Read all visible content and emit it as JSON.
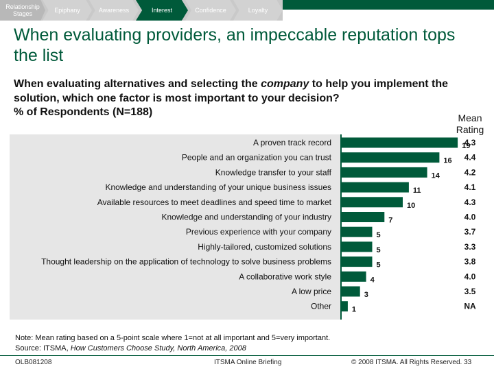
{
  "nav": {
    "label": "Relationship Stages",
    "stages": [
      "Epiphany",
      "Awareness",
      "Interest",
      "Confidence",
      "Loyalty"
    ],
    "active": "Interest"
  },
  "title": "When evaluating providers, an impeccable reputation tops the list",
  "subtitle": {
    "part1": "When evaluating alternatives and selecting the ",
    "emph": "company",
    "part2": " to help you implement the solution, which one factor is most important to your decision?"
  },
  "respondents": "% of Respondents (N=188)",
  "mean_rating_header": "Mean Rating",
  "colors": {
    "brand": "#005a3a",
    "bar": "#005a3a",
    "plot_bg": "#e6e6e6"
  },
  "chart_data": {
    "type": "bar",
    "orientation": "horizontal",
    "categories": [
      "A proven track record",
      "People and an organization you can trust",
      "Knowledge transfer to your staff",
      "Knowledge and understanding of your unique business issues",
      "Available resources to meet deadlines and speed time to market",
      "Knowledge and understanding of your industry",
      "Previous experience with your company",
      "Highly-tailored, customized solutions",
      "Thought leadership on the application of technology to solve business problems",
      "A collaborative work style",
      "A low price",
      "Other"
    ],
    "values": [
      19,
      16,
      14,
      11,
      10,
      7,
      5,
      5,
      5,
      4,
      3,
      1
    ],
    "mean_ratings": [
      "4.3",
      "4.4",
      "4.2",
      "4.1",
      "4.3",
      "4.0",
      "3.7",
      "3.3",
      "3.8",
      "4.0",
      "3.5",
      "NA"
    ],
    "xlim": [
      0,
      20
    ]
  },
  "note": {
    "line1": "Note: Mean rating based on a 5-point scale where 1=not at all important and 5=very important.",
    "source_prefix": "Source: ITSMA, ",
    "source_emph": "How Customers Choose Study, North America, 2008"
  },
  "footer": {
    "code": "OLB081208",
    "center": "ITSMA Online Briefing",
    "right": "© 2008 ITSMA. All Rights Reserved. 33"
  }
}
